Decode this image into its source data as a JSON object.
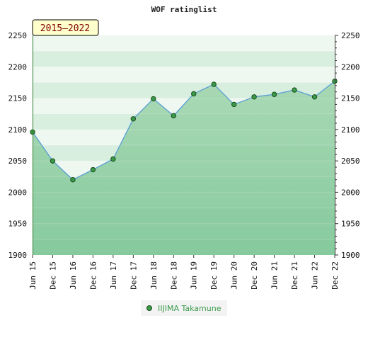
{
  "chart_data": {
    "type": "line",
    "title": "WOF ratinglist",
    "period_badge": "2015–2022",
    "categories": [
      "Jun 15",
      "Dec 15",
      "Jun 16",
      "Dec 16",
      "Jun 17",
      "Dec 17",
      "Jun 18",
      "Dec 18",
      "Jun 19",
      "Dec 19",
      "Jun 20",
      "Dec 20",
      "Jun 21",
      "Dec 21",
      "Jun 22",
      "Dec 22"
    ],
    "series": [
      {
        "name": "IIJIMA Takamune",
        "values": [
          2096,
          2050,
          2020,
          2036,
          2053,
          2117,
          2149,
          2122,
          2157,
          2172,
          2140,
          2152,
          2156,
          2163,
          2152,
          2177
        ]
      }
    ],
    "ylim": [
      1900,
      2250
    ],
    "yticks": [
      1900,
      1950,
      2000,
      2050,
      2100,
      2150,
      2200,
      2250
    ],
    "grid": true,
    "legend_position": "bottom-center",
    "colors": {
      "line": "#5a9fd4",
      "marker_fill": "#3a9a4a",
      "marker_stroke": "#1b4d1b",
      "band_light": "#eef7f0",
      "band_dark": "#d8eede",
      "fill_top": "#9fd4ac",
      "fill_bottom": "#7cc595",
      "badge_bg": "#ffffcc"
    }
  }
}
